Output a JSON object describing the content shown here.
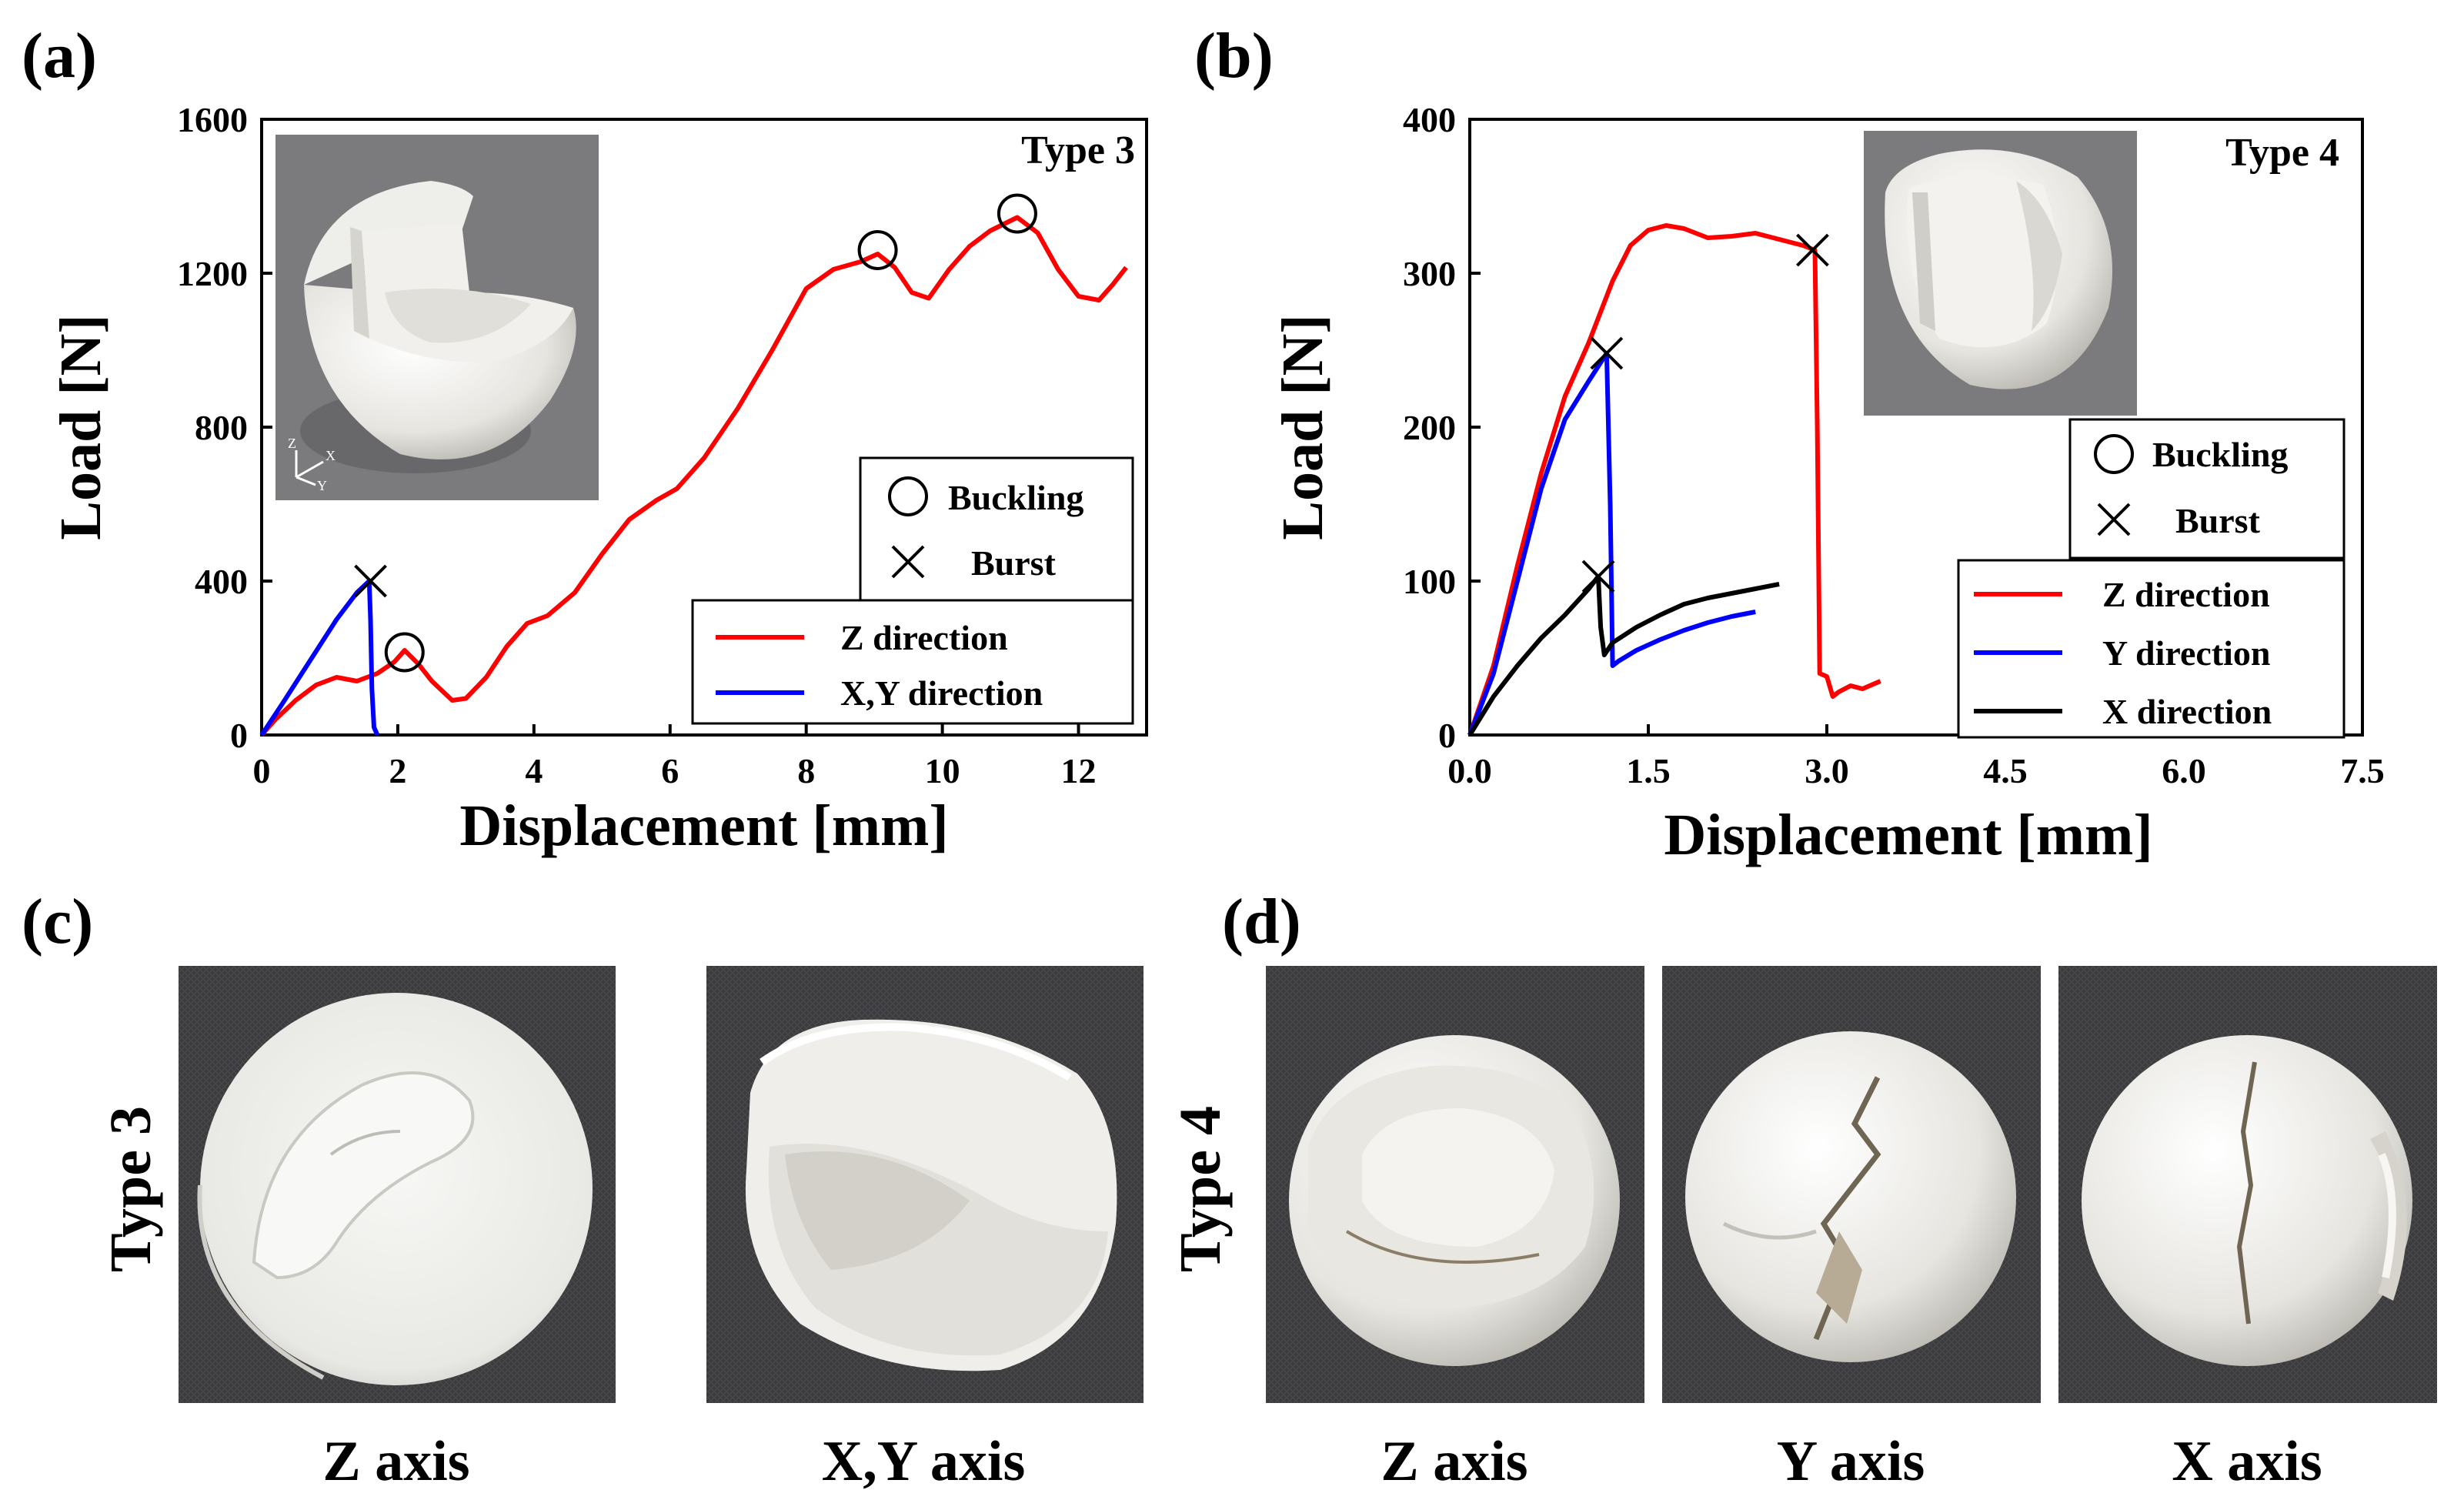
{
  "chart_data": [
    {
      "panel": "(a)",
      "type": "line",
      "title": "Type 3",
      "xlabel": "Displacement [mm]",
      "ylabel": "Load [N]",
      "xlim": [
        0,
        13
      ],
      "ylim": [
        0,
        1600
      ],
      "xticks": [
        0,
        2,
        4,
        6,
        8,
        10,
        12
      ],
      "yticks": [
        0,
        400,
        800,
        1200,
        1600
      ],
      "xtick_labels": [
        "0",
        "2",
        "4",
        "6",
        "8",
        "10",
        "12"
      ],
      "ytick_labels": [
        "0",
        "400",
        "800",
        "1200",
        "1600"
      ],
      "legend_markers": [
        {
          "symbol": "circle",
          "label": "Buckling"
        },
        {
          "symbol": "cross",
          "label": "Burst"
        }
      ],
      "series": [
        {
          "name": "Z direction",
          "color": "#ff0000",
          "x": [
            0,
            0.2,
            0.5,
            0.8,
            1.1,
            1.4,
            1.7,
            1.95,
            2.1,
            2.3,
            2.5,
            2.8,
            3.0,
            3.3,
            3.6,
            3.9,
            4.2,
            4.6,
            5.0,
            5.4,
            5.8,
            6.1,
            6.5,
            7.0,
            7.5,
            8.0,
            8.4,
            8.8,
            9.05,
            9.3,
            9.55,
            9.8,
            10.1,
            10.4,
            10.7,
            11.1,
            11.4,
            11.7,
            12.0,
            12.3,
            12.5,
            12.7
          ],
          "y": [
            0,
            40,
            90,
            130,
            150,
            140,
            160,
            190,
            220,
            185,
            140,
            90,
            95,
            150,
            230,
            290,
            310,
            370,
            470,
            560,
            610,
            640,
            720,
            850,
            1000,
            1160,
            1210,
            1230,
            1250,
            1215,
            1150,
            1135,
            1210,
            1270,
            1310,
            1345,
            1305,
            1210,
            1140,
            1130,
            1170,
            1215
          ]
        },
        {
          "name": "X,Y direction",
          "color": "#0000ff",
          "x": [
            0,
            0.3,
            0.7,
            1.1,
            1.4,
            1.58,
            1.6,
            1.62,
            1.65,
            1.7
          ],
          "y": [
            0,
            80,
            190,
            300,
            370,
            400,
            300,
            120,
            20,
            0
          ]
        }
      ],
      "markers": [
        {
          "kind": "Burst",
          "x": 1.6,
          "y": 400
        },
        {
          "kind": "Buckling",
          "x": 2.1,
          "y": 215
        },
        {
          "kind": "Buckling",
          "x": 9.05,
          "y": 1260
        },
        {
          "kind": "Buckling",
          "x": 11.1,
          "y": 1355
        }
      ]
    },
    {
      "panel": "(b)",
      "type": "line",
      "title": "Type 4",
      "xlabel": "Displacement [mm]",
      "ylabel": "Load [N]",
      "xlim": [
        0,
        7.5
      ],
      "ylim": [
        0,
        400
      ],
      "xticks": [
        0,
        1.5,
        3,
        4.5,
        6,
        7.5
      ],
      "yticks": [
        0,
        100,
        200,
        300,
        400
      ],
      "xtick_labels": [
        "0.0",
        "1.5",
        "3.0",
        "4.5",
        "6.0",
        "7.5"
      ],
      "ytick_labels": [
        "0",
        "100",
        "200",
        "300",
        "400"
      ],
      "legend_markers": [
        {
          "symbol": "circle",
          "label": "Buckling"
        },
        {
          "symbol": "cross",
          "label": "Burst"
        }
      ],
      "series": [
        {
          "name": "Z direction",
          "color": "#ff0000",
          "x": [
            0,
            0.2,
            0.4,
            0.6,
            0.8,
            1.0,
            1.2,
            1.35,
            1.5,
            1.65,
            1.8,
            2.0,
            2.2,
            2.4,
            2.6,
            2.8,
            2.9,
            2.92,
            2.94,
            3.0,
            3.05,
            3.1,
            3.2,
            3.3,
            3.45
          ],
          "y": [
            0,
            45,
            110,
            170,
            220,
            255,
            295,
            318,
            328,
            331,
            329,
            323,
            324,
            326,
            322,
            318,
            315,
            200,
            40,
            38,
            25,
            28,
            32,
            30,
            35
          ]
        },
        {
          "name": "Y direction",
          "color": "#0000ff",
          "x": [
            0,
            0.2,
            0.4,
            0.6,
            0.8,
            1.0,
            1.15,
            1.18,
            1.2,
            1.25,
            1.4,
            1.6,
            1.8,
            2.0,
            2.2,
            2.4
          ],
          "y": [
            0,
            40,
            100,
            160,
            205,
            230,
            248,
            150,
            45,
            48,
            55,
            62,
            68,
            73,
            77,
            80
          ]
        },
        {
          "name": "X direction",
          "color": "#000000",
          "x": [
            0,
            0.2,
            0.4,
            0.6,
            0.8,
            1.0,
            1.08,
            1.1,
            1.13,
            1.2,
            1.4,
            1.6,
            1.8,
            2.0,
            2.2,
            2.4,
            2.6
          ],
          "y": [
            0,
            25,
            45,
            63,
            78,
            95,
            103,
            70,
            52,
            60,
            70,
            78,
            85,
            89,
            92,
            95,
            98
          ]
        }
      ],
      "markers": [
        {
          "kind": "Burst",
          "x": 1.15,
          "y": 248
        },
        {
          "kind": "Burst",
          "x": 1.08,
          "y": 103
        },
        {
          "kind": "Burst",
          "x": 2.88,
          "y": 315
        }
      ]
    }
  ],
  "photos": {
    "panel_c_letter": "(c)",
    "panel_d_letter": "(d)",
    "c_row_label": "Type 3",
    "d_row_label": "Type 4",
    "c_captions": [
      "Z axis",
      "X,Y axis"
    ],
    "d_captions": [
      "Z axis",
      "Y axis",
      "X axis"
    ],
    "inset_axes": {
      "z": "Z",
      "x": "X",
      "y": "Y"
    }
  },
  "colors": {
    "photo_bg": "#3a3a3c",
    "specimen": "#ecebe6",
    "specimen_shade": "#c9c7c0",
    "inset_bg": "#7b7b7d"
  }
}
